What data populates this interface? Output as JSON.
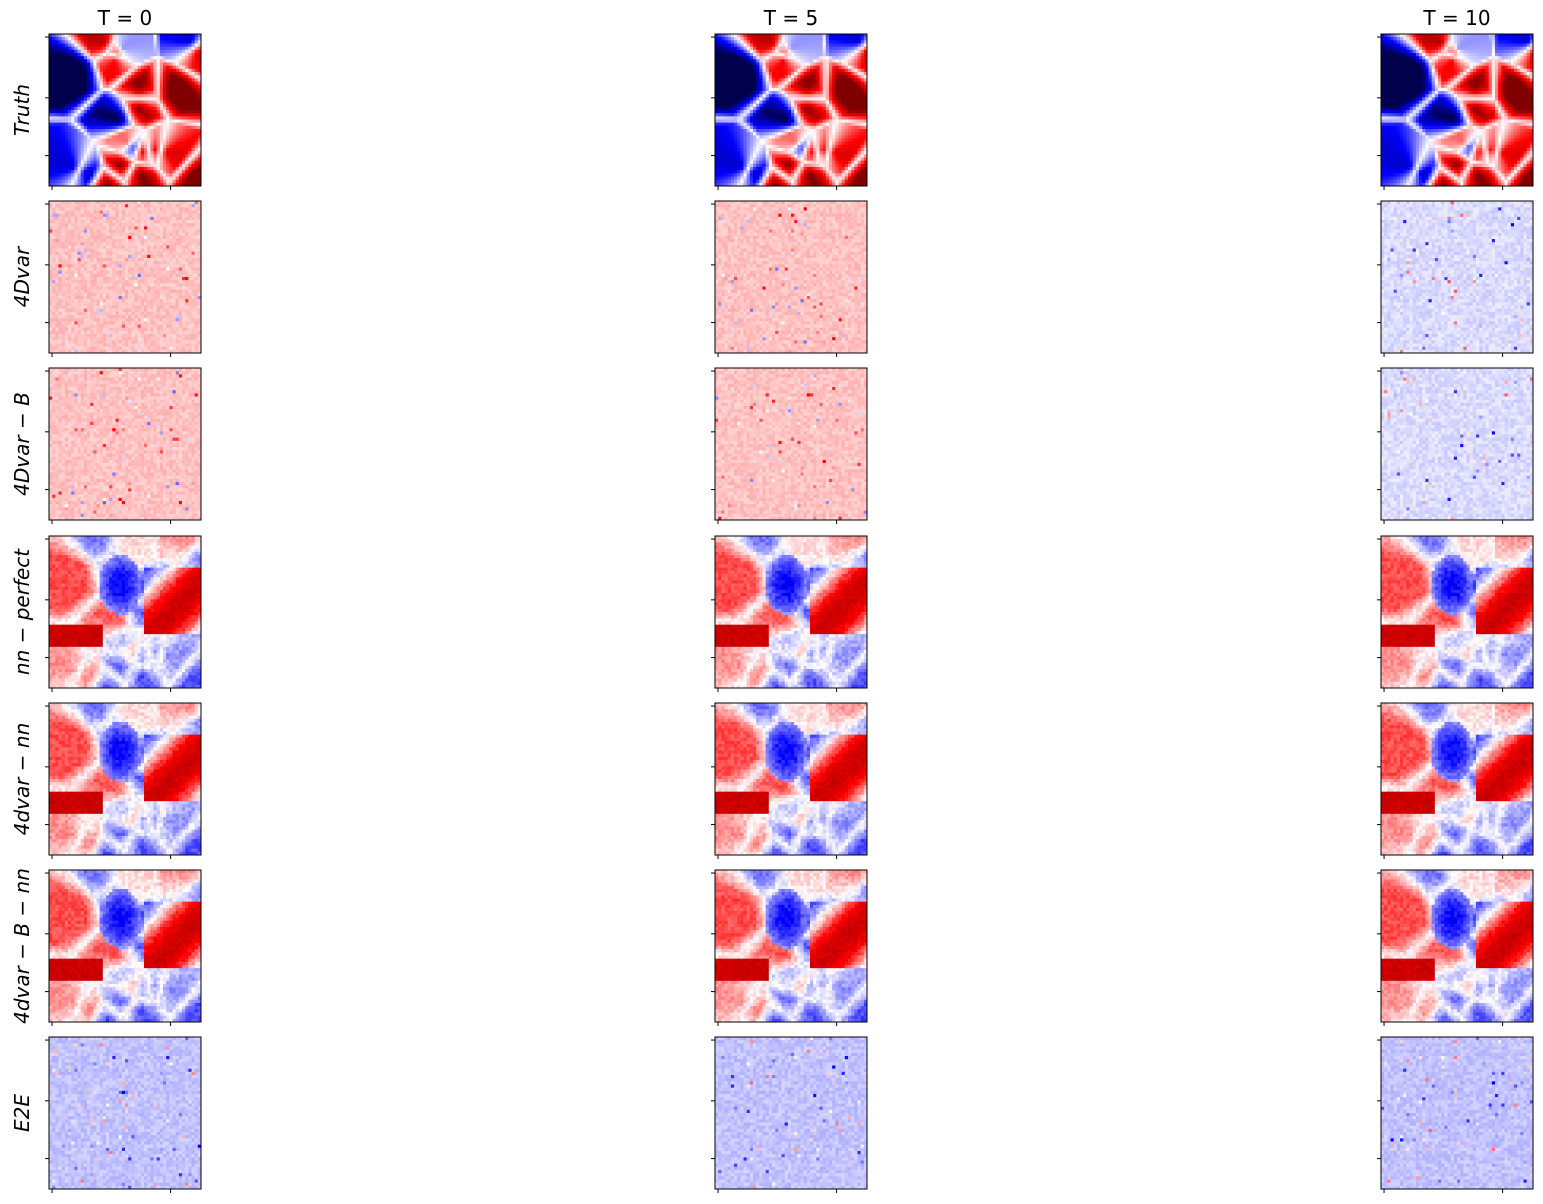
{
  "chart_data": {
    "type": "heatmap",
    "colormap": "seismic",
    "columns": [
      {
        "id": "t0",
        "title": "T = 0"
      },
      {
        "id": "t5",
        "title": "T = 5"
      },
      {
        "id": "t10",
        "title": "T = 10"
      }
    ],
    "rows": [
      {
        "id": "truth",
        "label": "Truth",
        "appearance": "strong"
      },
      {
        "id": "4dvar",
        "label": "4Dvar",
        "appearance": "faint-red"
      },
      {
        "id": "4dvar-b",
        "label": "4Dvar − B",
        "appearance": "faint-red"
      },
      {
        "id": "nn-perfect",
        "label": "nn − perfect",
        "appearance": "blue-structure"
      },
      {
        "id": "4dvar-nn",
        "label": "4dvar − nn",
        "appearance": "blue-structure"
      },
      {
        "id": "4dvar-b-nn",
        "label": "4dvar − B − nn",
        "appearance": "blue-structure"
      },
      {
        "id": "e2e",
        "label": "E2E",
        "appearance": "faint-blue"
      }
    ],
    "tick_labels_visible": false,
    "grid": false,
    "legend": "none"
  },
  "colors": {
    "low": "#00004c",
    "mid_low": "#0000ff",
    "zero": "#ffffff",
    "mid_high": "#ff0000",
    "high": "#800000"
  }
}
